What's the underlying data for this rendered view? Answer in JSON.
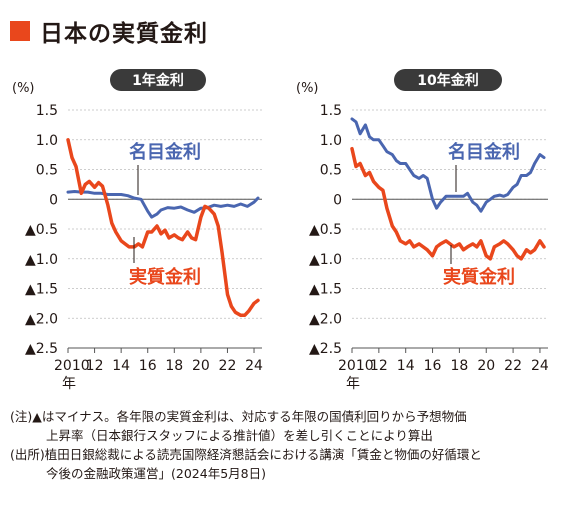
{
  "title": "日本の実質金利",
  "colors": {
    "accent": "#e9471c",
    "nominal": "#4a66b0",
    "real": "#e9471c",
    "axis_text": "#231815",
    "grid": "#bdbdbd",
    "pill": "#3a3a3a"
  },
  "notes": {
    "line1": "(注)▲はマイナス。各年限の実質金利は、対応する年限の国債利回りから予想物価",
    "line2": "上昇率（日本銀行スタッフによる推計値）を差し引くことにより算出",
    "line3": "(出所)植田日銀総裁による読売国際経済懇話会における講演「賃金と物価の好循環と",
    "line4": "今後の金融政策運営」(2024年5月8日)"
  },
  "chart_data": [
    {
      "type": "line",
      "title": "1年金利",
      "unit_label": "(%)",
      "ylim": [
        -2.5,
        1.5
      ],
      "y_ticks": [
        1.5,
        1.0,
        0.5,
        0,
        -0.5,
        -1.0,
        -1.5,
        -2.0,
        -2.5
      ],
      "y_tick_labels": [
        "1.5",
        "1.0",
        "0.5",
        "0",
        "▲0.5",
        "▲1.0",
        "▲1.5",
        "▲2.0",
        "▲2.5"
      ],
      "xlim": [
        2010,
        2024.6
      ],
      "x_ticks": [
        2010,
        2012,
        2014,
        2016,
        2018,
        2020,
        2022,
        2024
      ],
      "x_tick_labels": [
        "2010",
        "12",
        "14",
        "16",
        "18",
        "20",
        "22",
        "24"
      ],
      "x_unit": "年",
      "grid": true,
      "series": [
        {
          "name": "名目金利",
          "x": [
            2010.0,
            2010.5,
            2011.0,
            2011.5,
            2012.0,
            2012.5,
            2013.0,
            2013.5,
            2014.0,
            2014.5,
            2015.0,
            2015.5,
            2016.0,
            2016.3,
            2016.7,
            2017.0,
            2017.5,
            2018.0,
            2018.5,
            2019.0,
            2019.5,
            2020.0,
            2020.5,
            2021.0,
            2021.5,
            2022.0,
            2022.5,
            2023.0,
            2023.5,
            2024.0,
            2024.3
          ],
          "values": [
            0.12,
            0.13,
            0.12,
            0.12,
            0.1,
            0.1,
            0.08,
            0.08,
            0.08,
            0.06,
            0.02,
            0.0,
            -0.2,
            -0.3,
            -0.25,
            -0.18,
            -0.14,
            -0.15,
            -0.13,
            -0.18,
            -0.22,
            -0.15,
            -0.14,
            -0.1,
            -0.12,
            -0.1,
            -0.12,
            -0.08,
            -0.12,
            -0.05,
            0.02
          ]
        },
        {
          "name": "実質金利",
          "x": [
            2010.0,
            2010.3,
            2010.6,
            2011.0,
            2011.3,
            2011.6,
            2012.0,
            2012.3,
            2012.6,
            2013.0,
            2013.3,
            2013.6,
            2014.0,
            2014.3,
            2014.6,
            2015.0,
            2015.3,
            2015.6,
            2016.0,
            2016.3,
            2016.7,
            2017.0,
            2017.3,
            2017.6,
            2018.0,
            2018.3,
            2018.6,
            2019.0,
            2019.3,
            2019.6,
            2020.0,
            2020.3,
            2020.6,
            2021.0,
            2021.3,
            2021.6,
            2022.0,
            2022.3,
            2022.6,
            2023.0,
            2023.3,
            2023.6,
            2024.0,
            2024.3
          ],
          "values": [
            1.0,
            0.7,
            0.55,
            0.1,
            0.25,
            0.3,
            0.2,
            0.28,
            0.22,
            -0.1,
            -0.4,
            -0.55,
            -0.7,
            -0.75,
            -0.8,
            -0.8,
            -0.75,
            -0.8,
            -0.55,
            -0.55,
            -0.45,
            -0.58,
            -0.52,
            -0.65,
            -0.6,
            -0.65,
            -0.68,
            -0.55,
            -0.65,
            -0.68,
            -0.3,
            -0.12,
            -0.15,
            -0.25,
            -0.45,
            -0.9,
            -1.6,
            -1.8,
            -1.9,
            -1.95,
            -1.95,
            -1.88,
            -1.75,
            -1.7
          ]
        }
      ]
    },
    {
      "type": "line",
      "title": "10年金利",
      "unit_label": "(%)",
      "ylim": [
        -2.5,
        1.5
      ],
      "y_ticks": [
        1.5,
        1.0,
        0.5,
        0,
        -0.5,
        -1.0,
        -1.5,
        -2.0,
        -2.5
      ],
      "y_tick_labels": [
        "1.5",
        "1.0",
        "0.5",
        "0",
        "▲0.5",
        "▲1.0",
        "▲1.5",
        "▲2.0",
        "▲2.5"
      ],
      "xlim": [
        2010,
        2024.6
      ],
      "x_ticks": [
        2010,
        2012,
        2014,
        2016,
        2018,
        2020,
        2022,
        2024
      ],
      "x_tick_labels": [
        "2010",
        "12",
        "14",
        "16",
        "18",
        "20",
        "22",
        "24"
      ],
      "x_unit": "年",
      "grid": true,
      "series": [
        {
          "name": "名目金利",
          "x": [
            2010.0,
            2010.3,
            2010.6,
            2011.0,
            2011.3,
            2011.6,
            2012.0,
            2012.3,
            2012.6,
            2013.0,
            2013.3,
            2013.6,
            2014.0,
            2014.3,
            2014.6,
            2015.0,
            2015.3,
            2015.6,
            2016.0,
            2016.3,
            2016.6,
            2017.0,
            2017.3,
            2017.6,
            2018.0,
            2018.3,
            2018.6,
            2019.0,
            2019.3,
            2019.6,
            2020.0,
            2020.3,
            2020.6,
            2021.0,
            2021.3,
            2021.6,
            2022.0,
            2022.3,
            2022.6,
            2023.0,
            2023.3,
            2023.6,
            2024.0,
            2024.3
          ],
          "values": [
            1.35,
            1.3,
            1.1,
            1.25,
            1.05,
            1.0,
            1.0,
            0.9,
            0.8,
            0.75,
            0.65,
            0.6,
            0.6,
            0.5,
            0.4,
            0.35,
            0.4,
            0.35,
            0.0,
            -0.15,
            -0.05,
            0.05,
            0.05,
            0.05,
            0.05,
            0.05,
            0.1,
            -0.05,
            -0.1,
            -0.2,
            -0.05,
            0.0,
            0.05,
            0.07,
            0.05,
            0.08,
            0.2,
            0.25,
            0.4,
            0.4,
            0.45,
            0.6,
            0.75,
            0.7
          ]
        },
        {
          "name": "実質金利",
          "x": [
            2010.0,
            2010.3,
            2010.6,
            2011.0,
            2011.3,
            2011.6,
            2012.0,
            2012.3,
            2012.6,
            2013.0,
            2013.3,
            2013.6,
            2014.0,
            2014.3,
            2014.6,
            2015.0,
            2015.3,
            2015.6,
            2016.0,
            2016.3,
            2016.6,
            2017.0,
            2017.3,
            2017.6,
            2018.0,
            2018.3,
            2018.6,
            2019.0,
            2019.3,
            2019.6,
            2020.0,
            2020.3,
            2020.6,
            2021.0,
            2021.3,
            2021.6,
            2022.0,
            2022.3,
            2022.6,
            2023.0,
            2023.3,
            2023.6,
            2024.0,
            2024.3
          ],
          "values": [
            0.85,
            0.55,
            0.6,
            0.4,
            0.45,
            0.3,
            0.2,
            0.15,
            -0.15,
            -0.45,
            -0.55,
            -0.7,
            -0.75,
            -0.7,
            -0.8,
            -0.75,
            -0.8,
            -0.85,
            -0.95,
            -0.8,
            -0.75,
            -0.7,
            -0.75,
            -0.8,
            -0.75,
            -0.85,
            -0.8,
            -0.75,
            -0.8,
            -0.7,
            -0.95,
            -1.0,
            -0.8,
            -0.75,
            -0.7,
            -0.75,
            -0.85,
            -0.95,
            -1.0,
            -0.85,
            -0.9,
            -0.85,
            -0.7,
            -0.8
          ]
        }
      ]
    }
  ]
}
